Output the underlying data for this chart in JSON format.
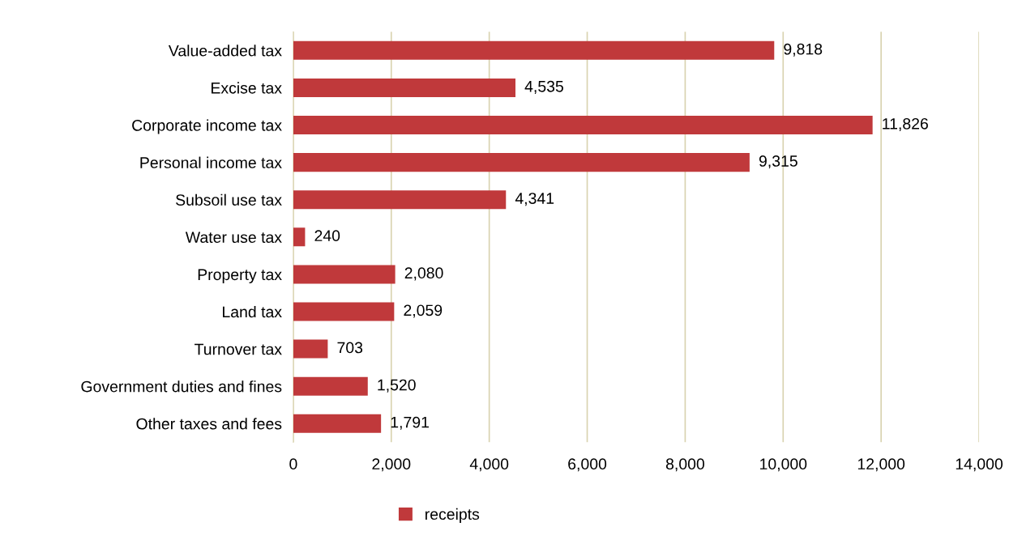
{
  "chart_data": {
    "type": "bar",
    "orientation": "horizontal",
    "categories": [
      "Value-added tax",
      "Excise tax",
      "Corporate income tax",
      "Personal income tax",
      "Subsoil use tax",
      "Water use tax",
      "Property tax",
      "Land tax",
      "Turnover tax",
      "Government duties and fines",
      "Other taxes and fees"
    ],
    "series": [
      {
        "name": "receipts",
        "color": "#c0393b",
        "values": [
          9818,
          4535,
          11826,
          9315,
          4341,
          240,
          2080,
          2059,
          703,
          1520,
          1791
        ],
        "value_labels": [
          "9,818",
          "4,535",
          "11,826",
          "9,315",
          "4,341",
          "240",
          "2,080",
          "2,059",
          "703",
          "1,520",
          "1,791"
        ]
      }
    ],
    "xlim": [
      0,
      14000
    ],
    "xticks": [
      0,
      {
        "value": 2000,
        "label": "2,000"
      },
      {
        "value": 4000,
        "label": "4,000"
      },
      {
        "value": 6000,
        "label": "6,000"
      },
      {
        "value": 8000,
        "label": "8,000"
      },
      {
        "value": 10000,
        "label": "10,000"
      },
      {
        "value": 12000,
        "label": "12,000"
      },
      {
        "value": 14000,
        "label": "14,000"
      }
    ],
    "grid": "x",
    "legend": "bottom"
  }
}
